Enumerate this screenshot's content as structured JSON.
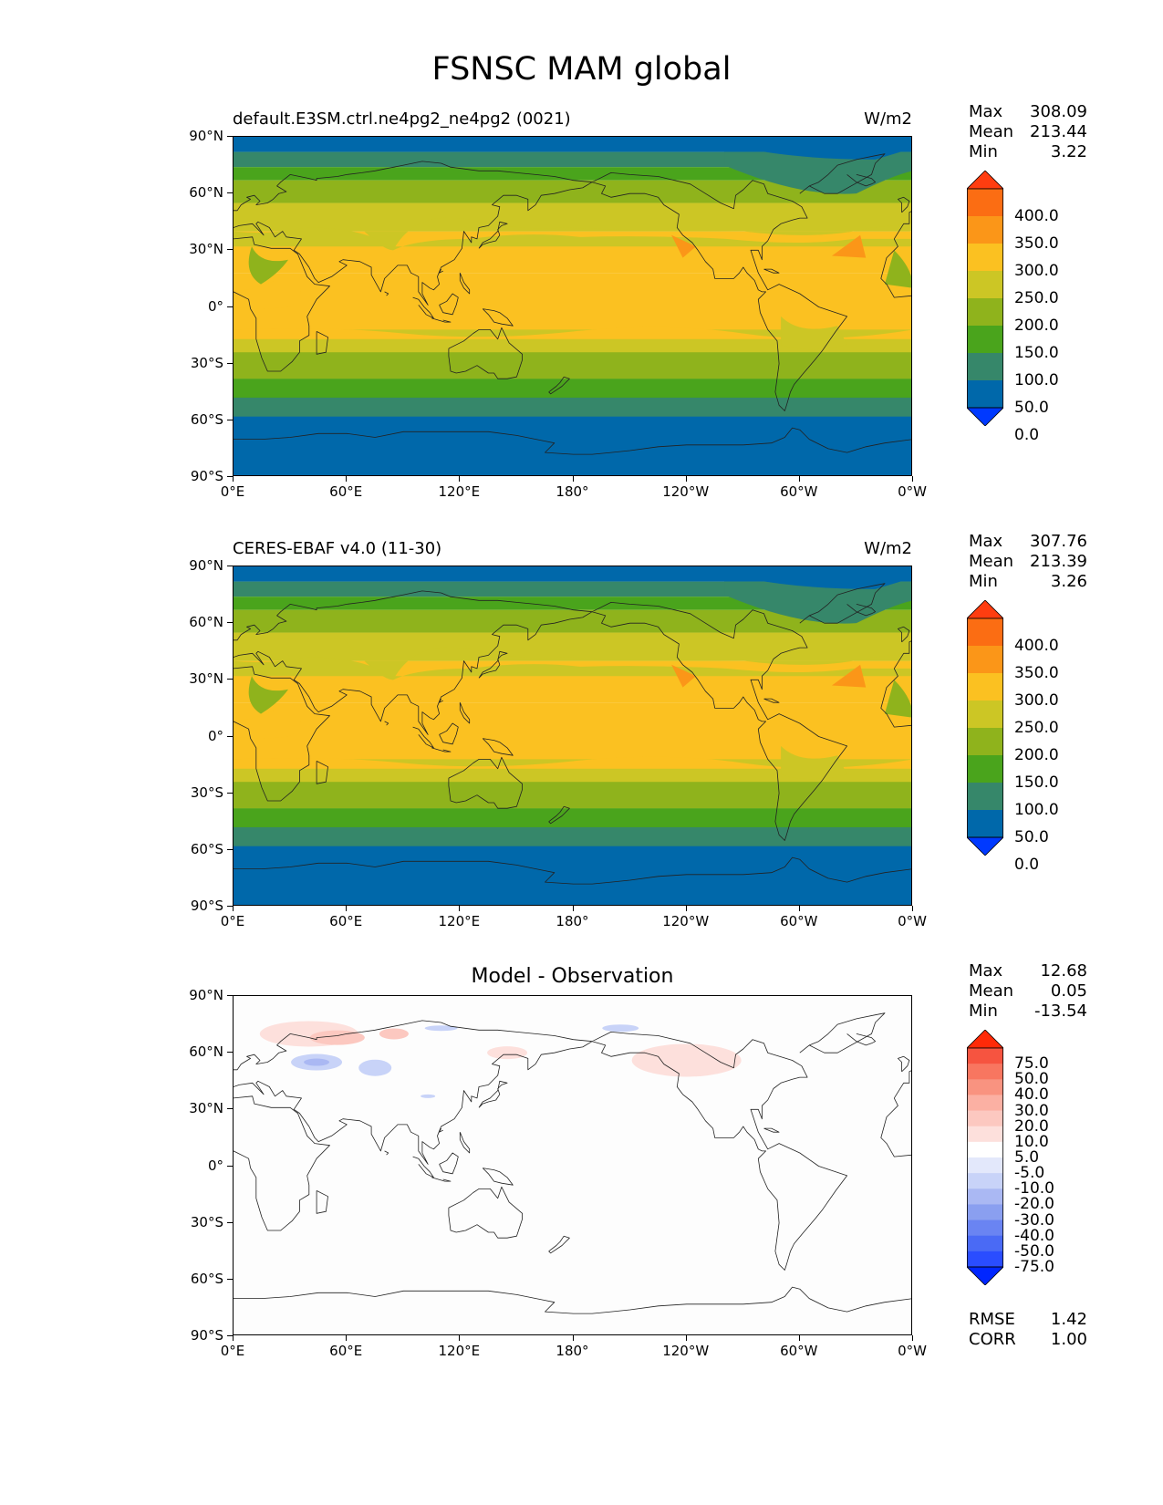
{
  "title": "FSNSC MAM global",
  "axes": {
    "lat_ticks": [
      "90°N",
      "60°N",
      "30°N",
      "0°",
      "30°S",
      "60°S",
      "90°S"
    ],
    "lon_ticks": [
      "0°E",
      "60°E",
      "120°E",
      "180°",
      "120°W",
      "60°W",
      "0°W"
    ]
  },
  "colors": {
    "field_levels": [
      "#0039ff",
      "#0068aa",
      "#36876a",
      "#4aa41c",
      "#8fb31c",
      "#ccc625",
      "#fbc121",
      "#fb9618",
      "#fb6d13",
      "#ff3d10"
    ],
    "diff_levels": [
      "#0026ff",
      "#2a4dff",
      "#4a6af5",
      "#6a84f2",
      "#8a9ff0",
      "#aab8f3",
      "#c8d3f8",
      "#e3e8fb",
      "#ffffff",
      "#fde0dc",
      "#fcc8c0",
      "#fbb0a3",
      "#f99380",
      "#f87660",
      "#f65440",
      "#ff2a08"
    ]
  },
  "panels": [
    {
      "title": "default.E3SM.ctrl.ne4pg2_ne4pg2 (0021)",
      "units": "W/m2",
      "stats": [
        {
          "label": "Max",
          "value": "308.09"
        },
        {
          "label": "Mean",
          "value": "213.44"
        },
        {
          "label": "Min",
          "value": "3.22"
        }
      ],
      "colorbar_labels": [
        "400.0",
        "350.0",
        "300.0",
        "250.0",
        "200.0",
        "150.0",
        "100.0",
        "50.0",
        "0.0"
      ]
    },
    {
      "title": "CERES-EBAF v4.0 (11-30)",
      "units": "W/m2",
      "stats": [
        {
          "label": "Max",
          "value": "307.76"
        },
        {
          "label": "Mean",
          "value": "213.39"
        },
        {
          "label": "Min",
          "value": "3.26"
        }
      ],
      "colorbar_labels": [
        "400.0",
        "350.0",
        "300.0",
        "250.0",
        "200.0",
        "150.0",
        "100.0",
        "50.0",
        "0.0"
      ]
    },
    {
      "title": "Model - Observation",
      "stats": [
        {
          "label": "Max",
          "value": "12.68"
        },
        {
          "label": "Mean",
          "value": "0.05"
        },
        {
          "label": "Min",
          "value": "-13.54"
        }
      ],
      "colorbar_labels": [
        "75.0",
        "50.0",
        "40.0",
        "30.0",
        "20.0",
        "10.0",
        "5.0",
        "-5.0",
        "-10.0",
        "-20.0",
        "-30.0",
        "-40.0",
        "-50.0",
        "-75.0"
      ],
      "footer_stats": [
        {
          "label": "RMSE",
          "value": "1.42"
        },
        {
          "label": "CORR",
          "value": "1.00"
        }
      ]
    }
  ]
}
